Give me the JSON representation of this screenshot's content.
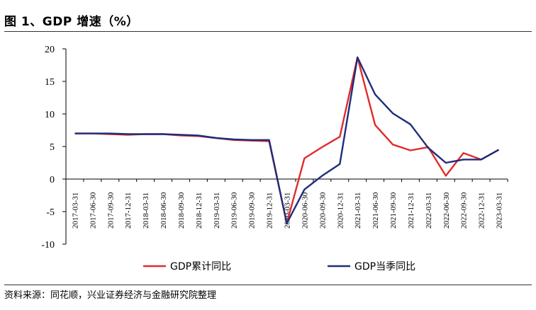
{
  "header": {
    "title": "图 1、GDP 增速（%）"
  },
  "footer": {
    "source": "资料来源：同花顺，兴业证券经济与金融研究院整理"
  },
  "colors": {
    "cumulative": "#e02b2b",
    "quarterly": "#1f2d7a"
  },
  "chart_data": {
    "type": "line",
    "title": "图 1、GDP 增速（%）",
    "xlabel": "",
    "ylabel": "",
    "ylim": [
      -10,
      20
    ],
    "yticks": [
      -10,
      -5,
      0,
      5,
      10,
      15,
      20
    ],
    "grid": false,
    "legend_position": "bottom",
    "x": [
      "2017-03-31",
      "2017-06-30",
      "2017-09-30",
      "2017-12-31",
      "2018-03-31",
      "2018-06-30",
      "2018-09-30",
      "2018-12-31",
      "2019-03-31",
      "2019-06-30",
      "2019-09-30",
      "2019-12-31",
      "2020-03-31",
      "2020-06-30",
      "2020-09-30",
      "2020-12-31",
      "2021-03-31",
      "2021-06-30",
      "2021-09-30",
      "2021-12-31",
      "2022-03-31",
      "2022-06-30",
      "2022-09-30",
      "2022-12-31",
      "2023-03-31"
    ],
    "series": [
      {
        "name": "GDP累计同比",
        "color": "#e02b2b",
        "values": [
          7.0,
          7.0,
          6.9,
          6.8,
          6.9,
          6.9,
          6.7,
          6.6,
          6.3,
          6.0,
          5.9,
          5.8,
          -6.8,
          3.2,
          4.9,
          6.5,
          18.7,
          8.3,
          5.3,
          4.4,
          4.9,
          0.5,
          4.0,
          3.0,
          4.5
        ]
      },
      {
        "name": "GDP当季同比",
        "color": "#1f2d7a",
        "values": [
          7.0,
          7.0,
          7.0,
          6.9,
          6.9,
          6.9,
          6.8,
          6.7,
          6.3,
          6.1,
          6.0,
          6.0,
          -6.8,
          -1.6,
          0.5,
          2.3,
          18.7,
          13.0,
          10.1,
          8.4,
          4.8,
          2.5,
          3.0,
          3.0,
          4.5
        ]
      }
    ]
  }
}
